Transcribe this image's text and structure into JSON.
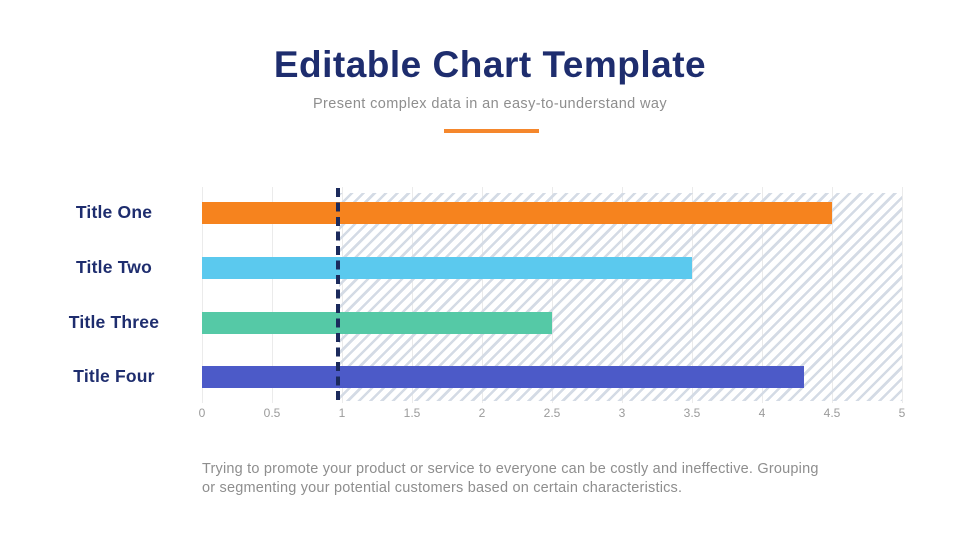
{
  "header": {
    "title": "Editable Chart Template",
    "subtitle": "Present complex data in an easy-to-understand way"
  },
  "chart_data": {
    "type": "bar",
    "orientation": "horizontal",
    "categories": [
      "Title One",
      "Title Two",
      "Title Three",
      "Title Four"
    ],
    "values": [
      4.5,
      3.5,
      2.5,
      4.3
    ],
    "bar_colors": [
      "#F6831E",
      "#5BC9EE",
      "#55C9A6",
      "#4C5AC8"
    ],
    "xlim": [
      0,
      5
    ],
    "x_ticks": [
      0,
      0.5,
      1,
      1.5,
      2,
      2.5,
      3,
      3.5,
      4,
      4.5,
      5
    ],
    "x_tick_labels": [
      "0",
      "0.5",
      "1",
      "1.5",
      "2",
      "2.5",
      "3",
      "3.5",
      "4",
      "4.5",
      "5"
    ],
    "grid": "vertical gridlines every 0.5, no axis line",
    "legend": "none",
    "reference_line": {
      "x": 0.97,
      "style": "dashed",
      "color": "#1B2A5C"
    },
    "hatched_region": {
      "from": 0.98,
      "to": 5,
      "stripe_color": "#D4DBE5",
      "direction": "diagonal-forward"
    }
  },
  "footer": {
    "text": "Trying to promote your product or service to everyone can be costly and ineffective. Grouping or segmenting your potential customers based on certain characteristics."
  },
  "colors": {
    "title": "#1E2D6E",
    "subtitle": "#8E8E8E",
    "divider": "#F5872C",
    "category_label": "#1E2D6E",
    "tick_label": "#9B9B9B",
    "gridline": "#EBEBEB",
    "footer": "#8E8E8E"
  }
}
